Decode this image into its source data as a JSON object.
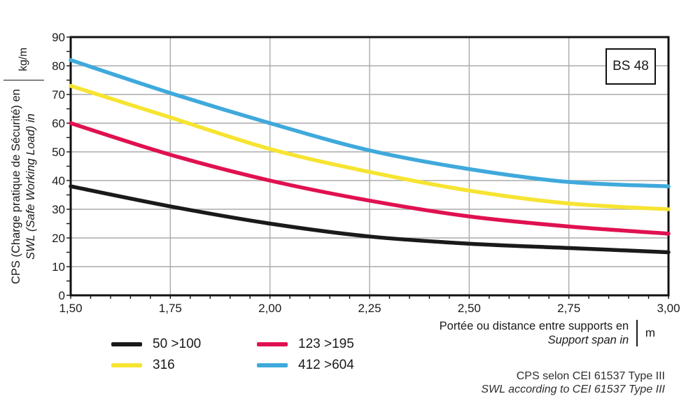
{
  "figure": {
    "badge_label": "BS 48",
    "y_axis": {
      "title_fr": "CPS (Charge pratique de Sécurité) en",
      "title_en": "SWL (Safe Working Load) in",
      "unit": "kg/m"
    },
    "x_axis": {
      "title_fr": "Portée ou distance entre supports en",
      "title_en": "Support span in",
      "unit": "m"
    },
    "footer": {
      "line_fr": "CPS selon CEI 61537 Type III",
      "line_en": "SWL according to CEI 61537 Type III"
    }
  },
  "chart_data": {
    "type": "line",
    "title": "",
    "xlabel": "Portée ou distance entre supports en / Support span in (m)",
    "ylabel": "CPS (Charge pratique de Sécurité) en / SWL (Safe Working Load) in (kg/m)",
    "xlim": [
      1.5,
      3.0
    ],
    "ylim": [
      0,
      90
    ],
    "grid": true,
    "legend_position": "bottom-left",
    "x": [
      1.5,
      1.75,
      2.0,
      2.25,
      2.5,
      2.75,
      3.0
    ],
    "x_tick_labels": [
      "1,50",
      "1,75",
      "2,00",
      "2,25",
      "2,50",
      "2,75",
      "3,00"
    ],
    "y_tick_values": [
      0,
      10,
      20,
      30,
      40,
      50,
      60,
      70,
      80,
      90
    ],
    "y_tick_labels": [
      "0",
      "10",
      "20",
      "30",
      "40",
      "50",
      "60",
      "70",
      "80",
      "90"
    ],
    "series": [
      {
        "name": "50 >100",
        "color": "#1a1a1a",
        "values": [
          38,
          31,
          25,
          20.5,
          18,
          16.5,
          15
        ]
      },
      {
        "name": "123 >195",
        "color": "#e01150",
        "values": [
          60,
          49,
          40,
          33,
          27.5,
          24,
          21.5
        ]
      },
      {
        "name": "316",
        "color": "#f6e431",
        "values": [
          73,
          62,
          51,
          43,
          36.5,
          32,
          30
        ]
      },
      {
        "name": "412 >604",
        "color": "#3fa9dc",
        "values": [
          82,
          70.5,
          60,
          50.5,
          44,
          39.5,
          38
        ]
      }
    ]
  }
}
